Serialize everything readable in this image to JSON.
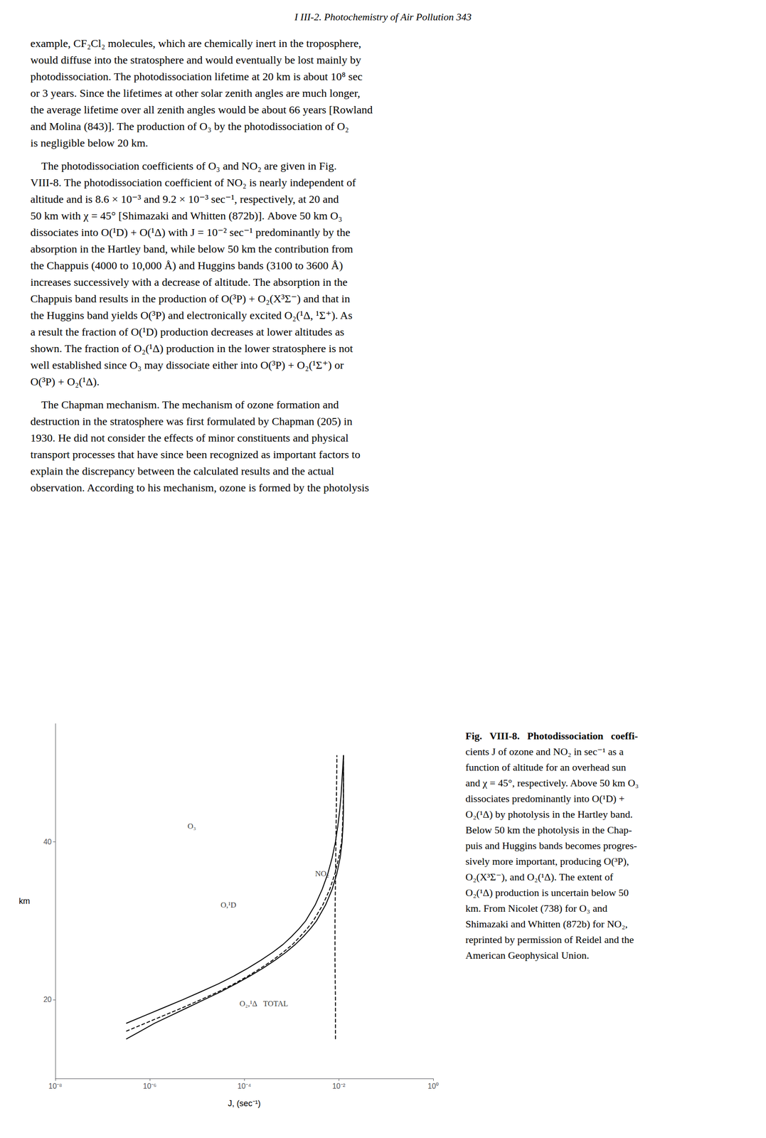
{
  "chart_data": {
    "type": "line",
    "x_label": "J, (sec⁻¹)",
    "y_label": "km",
    "xlim": [
      -8,
      0
    ],
    "xticks": [
      {
        "value": -8,
        "label": "10⁻⁸"
      },
      {
        "value": -6,
        "label": "10⁻⁶"
      },
      {
        "value": -4,
        "label": "10⁻⁴"
      },
      {
        "value": -2,
        "label": "10⁻²"
      },
      {
        "value": 0,
        "label": "10⁰"
      }
    ],
    "ylim": [
      10,
      55
    ],
    "yticks": [
      20,
      40
    ],
    "grid": false,
    "series": [
      {
        "color": "#000000",
        "line_style": "solid",
        "x": [
          -6.5,
          -6.2,
          -5.9,
          -5.55,
          -5.2,
          -4.85,
          -4.5,
          -4.18,
          -3.88,
          -3.6,
          -3.35,
          -3.12,
          -2.92,
          -2.75,
          -2.6,
          -2.47,
          -2.28,
          -2.14,
          -2.04,
          -1.97,
          -1.93,
          -1.91,
          -1.9,
          -1.9,
          -1.9,
          -1.9,
          -1.9
        ],
        "values": [
          15,
          16,
          17,
          18,
          19,
          20,
          21,
          22,
          23,
          24,
          25,
          26,
          27,
          28,
          29,
          30,
          32,
          34,
          36,
          38,
          40,
          42,
          44,
          46,
          48,
          50,
          51
        ]
      },
      {
        "color": "#000000",
        "line_style": "solid",
        "x": [
          -6.5,
          -6.1,
          -5.7,
          -5.3,
          -4.92,
          -4.55,
          -4.22,
          -3.92,
          -3.65,
          -3.4,
          -3.18,
          -3.0,
          -2.84,
          -2.7,
          -2.5,
          -2.35,
          -2.23,
          -2.14,
          -2.07,
          -2.02,
          -1.98,
          -1.95,
          -1.93,
          -1.91,
          -1.9
        ],
        "values": [
          17,
          18,
          19,
          20,
          21,
          22,
          23,
          24,
          25,
          26,
          27,
          28,
          29,
          30,
          32,
          34,
          36,
          38,
          40,
          42,
          44,
          46,
          48,
          50,
          51
        ]
      },
      {
        "color": "#000000",
        "line_style": "dashed",
        "x": [
          -6.5,
          -6.1,
          -5.7,
          -5.3,
          -4.92,
          -4.55,
          -4.22,
          -3.92,
          -3.65,
          -3.4,
          -3.18,
          -2.98,
          -2.82,
          -2.67,
          -2.54,
          -2.34,
          -2.19,
          -2.08,
          -2.0,
          -1.94,
          -1.92,
          -1.91,
          -1.9,
          -1.9,
          -1.9,
          -1.9
        ],
        "values": [
          16,
          17,
          18,
          19,
          20,
          21,
          22,
          23,
          24,
          25,
          26,
          27,
          28,
          29,
          30,
          32,
          34,
          36,
          38,
          40,
          42,
          44,
          46,
          48,
          50,
          51
        ]
      },
      {
        "color": "#000000",
        "line_style": "dashed",
        "x": [
          -2.07,
          -2.07,
          -2.08,
          -2.08,
          -2.07,
          -2.06,
          -2.05,
          -2.04,
          -2.04
        ],
        "values": [
          15,
          20,
          25,
          30,
          35,
          40,
          45,
          50,
          51
        ]
      }
    ],
    "annotations": [
      {
        "text": "O₃",
        "x": -5.2,
        "y": 42
      },
      {
        "text": "O,¹D",
        "x": -4.5,
        "y": 32
      },
      {
        "text": "O₂,¹Δ",
        "x": -4.1,
        "y": 19.5
      },
      {
        "text": "TOTAL",
        "x": -3.6,
        "y": 19.5
      },
      {
        "text": "NO₂",
        "x": -2.5,
        "y": 36
      }
    ]
  },
  "header": "I III-2.  Photochemistry of Air Pollution   343",
  "paragraphs": [
    [
      "example, CF₂Cl₂ molecules, which are chemically inert in the troposphere,",
      "would diffuse into the stratosphere and would eventually be lost mainly by",
      "photodissociation. The photodissociation lifetime at 20 km is about 10⁸ sec",
      "or 3 years. Since the lifetimes at other solar zenith angles are much longer,",
      "the average lifetime over all zenith angles would be about 66 years [Rowland",
      "and Molina (843)]. The production of O₃ by the photodissociation of O₂",
      "is negligible below 20 km."
    ],
    [
      "    The photodissociation coefficients of O₃ and NO₂ are given in Fig.",
      "VIII-8. The photodissociation coefficient of NO₂ is nearly independent of",
      "altitude and is 8.6 × 10⁻³ and 9.2 × 10⁻³ sec⁻¹, respectively, at 20 and",
      "50 km with χ = 45° [Shimazaki and Whitten (872b)]. Above 50 km O₃",
      "dissociates into O(¹D) + O(¹Δ) with J = 10⁻² sec⁻¹ predominantly by the",
      "absorption in the Hartley band, while below 50 km the contribution from",
      "the Chappuis (4000 to 10,000 Å) and Huggins bands (3100 to 3600 Å)",
      "increases successively with a decrease of altitude. The absorption in the",
      "Chappuis band results in the production of O(³P) + O₂(X³Σ⁻) and that in",
      "the Huggins band yields O(³P) and electronically excited O₂(¹Δ, ¹Σ⁺). As",
      "a result the fraction of O(¹D) production decreases at lower altitudes as",
      "shown. The fraction of O₂(¹Δ) production in the lower stratosphere is not",
      "well established since O₃ may dissociate either into O(³P) + O₂(¹Σ⁺) or",
      "O(³P) + O₂(¹Δ)."
    ],
    [
      "    The Chapman mechanism. The mechanism of ozone formation and",
      "destruction in the stratosphere was first formulated by Chapman (205) in",
      "1930. He did not consider the effects of minor constituents and physical",
      "transport processes that have since been recognized as important factors to",
      "explain the discrepancy between the calculated results and the actual",
      "observation. According to his mechanism, ozone is formed by the photolysis"
    ]
  ],
  "caption": [
    "Fig.   VIII-8.   Photodissociation   coeffi-",
    "cients J of ozone and NO₂ in sec⁻¹ as a",
    "function of altitude for an overhead sun",
    "and χ = 45°, respectively. Above 50 km O₃",
    "dissociates predominantly into O(¹D) +",
    "O₂(¹Δ) by photolysis in the Hartley band.",
    "Below 50 km the photolysis in the Chap-",
    "puis and Huggins bands becomes progres-",
    "sively more important, producing O(³P),",
    "O₂(X³Σ⁻), and O₂(¹Δ). The extent of",
    "O₂(¹Δ) production is uncertain below 50",
    "km. From Nicolet (738) for O₃ and",
    "Shimazaki and Whitten (872b) for NO₂,",
    "reprinted by permission of Reidel and the",
    "American Geophysical Union."
  ]
}
